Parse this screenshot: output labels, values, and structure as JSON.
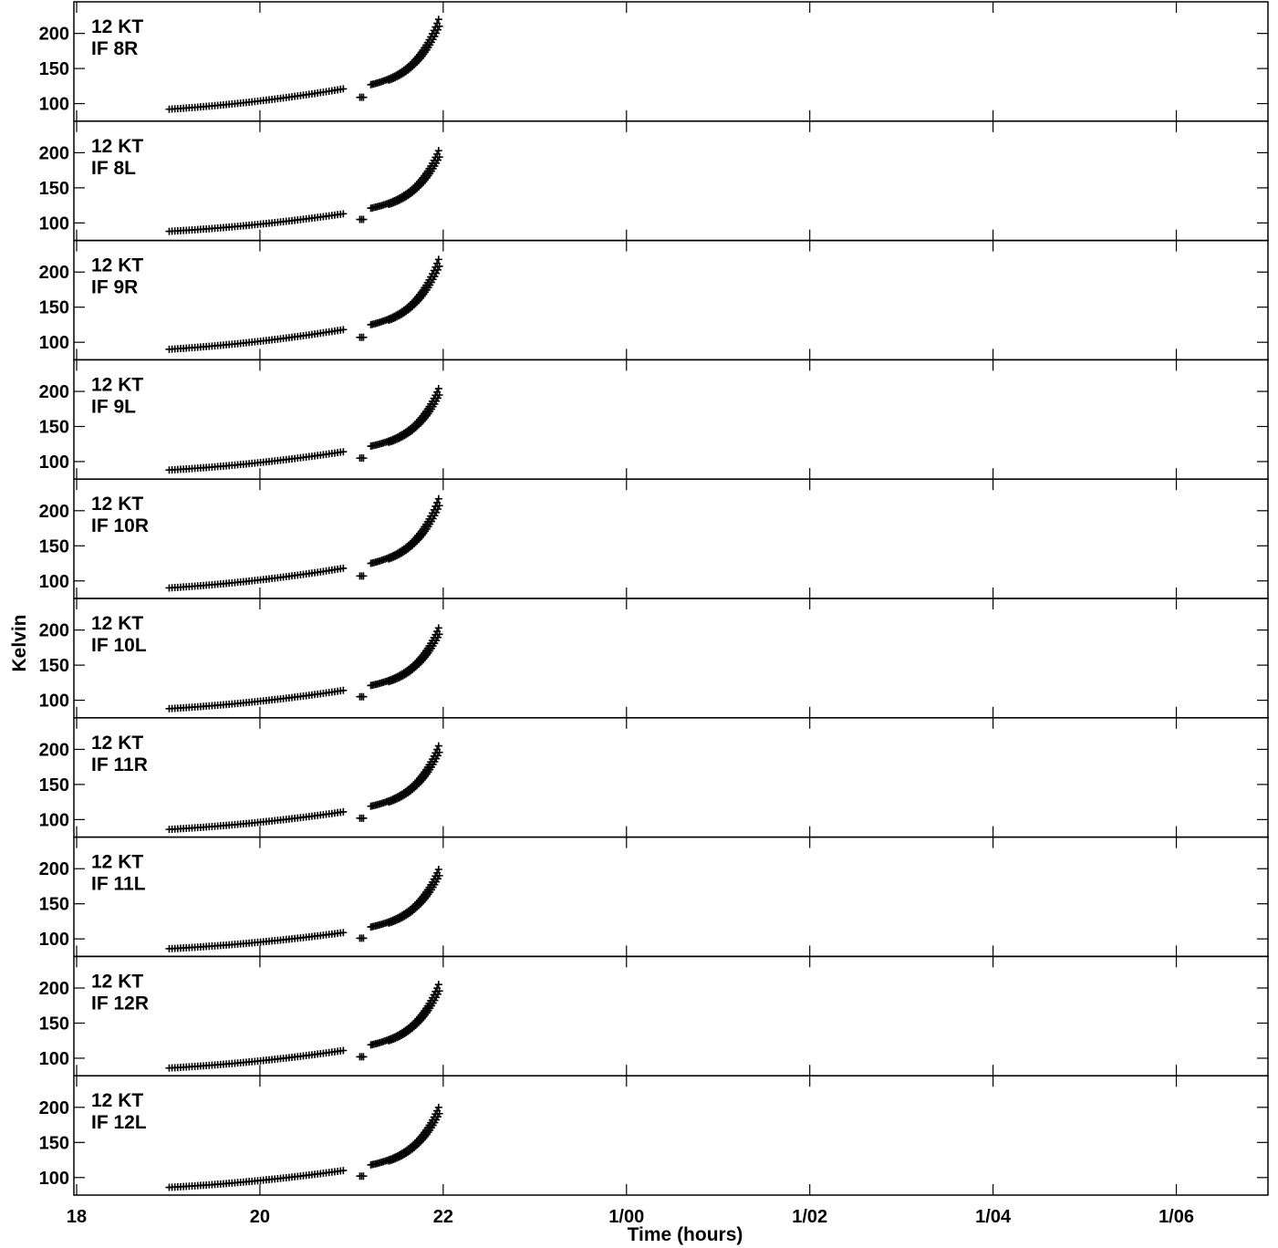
{
  "chart_data": {
    "type": "scatter",
    "ylabel": "Kelvin",
    "xlabel": "Time (hours)",
    "x_ticks": [
      {
        "value": 18,
        "label": "18"
      },
      {
        "value": 20,
        "label": "20"
      },
      {
        "value": 22,
        "label": "22"
      },
      {
        "value": 24,
        "label": "1/00"
      },
      {
        "value": 26,
        "label": "1/02"
      },
      {
        "value": 28,
        "label": "1/04"
      },
      {
        "value": 30,
        "label": "1/06"
      }
    ],
    "xlim": [
      17.97,
      31.0
    ],
    "ylim": [
      75,
      245
    ],
    "y_ticks": [
      100,
      150,
      200
    ],
    "panels": [
      {
        "line1": "12 KT",
        "line2": "IF 8R",
        "seg1": [
          19.01,
          20.91,
          92,
          121
        ],
        "seg2": [
          21.11,
          109
        ],
        "seg3": [
          21.21,
          21.95,
          127,
          220
        ]
      },
      {
        "line1": "12 KT",
        "line2": "IF 8L",
        "seg1": [
          19.01,
          20.91,
          88,
          113
        ],
        "seg2": [
          21.11,
          105
        ],
        "seg3": [
          21.21,
          21.95,
          121,
          203
        ]
      },
      {
        "line1": "12 KT",
        "line2": "IF 9R",
        "seg1": [
          19.01,
          20.91,
          90,
          118
        ],
        "seg2": [
          21.11,
          107
        ],
        "seg3": [
          21.21,
          21.95,
          125,
          218
        ]
      },
      {
        "line1": "12 KT",
        "line2": "IF 9L",
        "seg1": [
          19.01,
          20.91,
          88,
          114
        ],
        "seg2": [
          21.11,
          105
        ],
        "seg3": [
          21.21,
          21.95,
          122,
          204
        ]
      },
      {
        "line1": "12 KT",
        "line2": "IF 10R",
        "seg1": [
          19.01,
          20.91,
          90,
          118
        ],
        "seg2": [
          21.11,
          107
        ],
        "seg3": [
          21.21,
          21.95,
          125,
          217
        ]
      },
      {
        "line1": "12 KT",
        "line2": "IF 10L",
        "seg1": [
          19.01,
          20.91,
          88,
          114
        ],
        "seg2": [
          21.11,
          105
        ],
        "seg3": [
          21.21,
          21.95,
          121,
          203
        ]
      },
      {
        "line1": "12 KT",
        "line2": "IF 11R",
        "seg1": [
          19.01,
          20.91,
          86,
          111
        ],
        "seg2": [
          21.11,
          102
        ],
        "seg3": [
          21.21,
          21.95,
          119,
          205
        ]
      },
      {
        "line1": "12 KT",
        "line2": "IF 11L",
        "seg1": [
          19.01,
          20.91,
          86,
          109
        ],
        "seg2": [
          21.11,
          101
        ],
        "seg3": [
          21.21,
          21.95,
          117,
          199
        ]
      },
      {
        "line1": "12 KT",
        "line2": "IF 12R",
        "seg1": [
          19.01,
          20.91,
          86,
          111
        ],
        "seg2": [
          21.11,
          102
        ],
        "seg3": [
          21.21,
          21.95,
          119,
          205
        ]
      },
      {
        "line1": "12 KT",
        "line2": "IF 12L",
        "seg1": [
          19.01,
          20.91,
          86,
          110
        ],
        "seg2": [
          21.11,
          102
        ],
        "seg3": [
          21.21,
          21.95,
          118,
          200
        ]
      }
    ]
  }
}
